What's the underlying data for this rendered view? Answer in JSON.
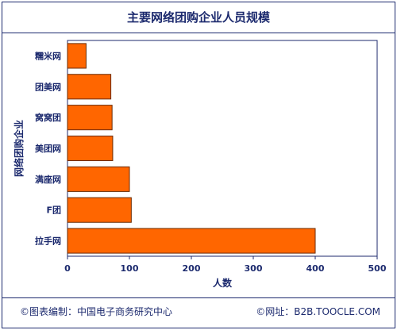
{
  "chart_data": {
    "type": "bar",
    "orientation": "horizontal",
    "title": "主要网络团购企业人员规模",
    "xlabel": "人数",
    "ylabel": "网络团购企业",
    "categories": [
      "糯米网",
      "团美网",
      "窝窝团",
      "美团网",
      "满座网",
      "F团",
      "拉手网"
    ],
    "values": [
      30,
      70,
      72,
      73,
      100,
      103,
      400
    ],
    "xlim": [
      0,
      500
    ],
    "xticks": [
      0,
      100,
      200,
      300,
      400,
      500
    ],
    "grid": false,
    "legend": "none",
    "bar_color": "#ff6600",
    "bar_edge_color": "#6a2a00"
  },
  "footer": {
    "left": "©图表编制：中国电子商务研究中心",
    "right": "©网址：B2B.TOOCLE.COM"
  },
  "colors": {
    "frame": "#1c2a6e",
    "text": "#1c2a6e"
  }
}
